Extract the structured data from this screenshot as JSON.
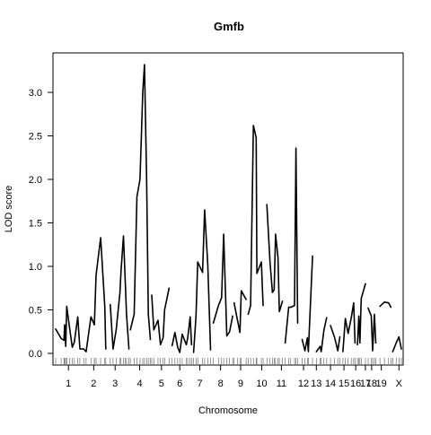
{
  "chart_data": {
    "type": "line",
    "title": "Gmfb",
    "xlabel": "Chromosome",
    "ylabel": "LOD score",
    "ylim": [
      -0.12,
      3.45
    ],
    "yticks": [
      0.0,
      0.5,
      1.0,
      1.5,
      2.0,
      2.5,
      3.0
    ],
    "ytick_labels": [
      "0.0",
      "0.5",
      "1.0",
      "1.5",
      "2.0",
      "2.5",
      "3.0"
    ],
    "xlim": [
      0,
      100
    ],
    "grid": false,
    "legend": "none",
    "line_color": "#000000",
    "chromosomes": [
      {
        "label": "1",
        "start": 0,
        "end": 11.2,
        "label_pos": 3.7,
        "points": [
          [
            0,
            0.28
          ],
          [
            1.6,
            0.17
          ],
          [
            2.4,
            0.15
          ],
          [
            2.6,
            0.33
          ],
          [
            2.9,
            0.08
          ],
          [
            3.2,
            0.54
          ],
          [
            4.0,
            0.3
          ],
          [
            4.8,
            0.07
          ],
          [
            5.4,
            0.13
          ],
          [
            6.4,
            0.42
          ],
          [
            7.0,
            0.05
          ],
          [
            8.1,
            0.05
          ],
          [
            8.8,
            0.02
          ],
          [
            10.2,
            0.42
          ],
          [
            11.2,
            0.33
          ]
        ]
      },
      {
        "label": "2",
        "start": 11.2,
        "end": 18.0,
        "label_pos": 11.0,
        "points": [
          [
            11.2,
            0.33
          ],
          [
            11.7,
            0.9
          ],
          [
            13.0,
            1.33
          ],
          [
            14.2,
            0.54
          ],
          [
            14.5,
            0.05
          ]
        ]
      },
      {
        "label": "3",
        "start": 18.0,
        "end": 25.0,
        "label_pos": 17.2,
        "points": [
          [
            15.8,
            0.56
          ],
          [
            16.6,
            0.05
          ],
          [
            17.5,
            0.27
          ],
          [
            18.6,
            0.7
          ],
          [
            18.9,
            0.95
          ],
          [
            19.6,
            1.35
          ],
          [
            20.1,
            0.85
          ],
          [
            20.5,
            0.45
          ],
          [
            21.2,
            0.05
          ]
        ]
      },
      {
        "label": "4",
        "start": 25.0,
        "end": 30.5,
        "label_pos": 24.3,
        "points": [
          [
            21.6,
            0.27
          ],
          [
            22.7,
            0.45
          ],
          [
            23.5,
            1.8
          ],
          [
            24.4,
            2.0
          ],
          [
            25.2,
            3.0
          ],
          [
            25.7,
            3.32
          ],
          [
            26.3,
            2.0
          ],
          [
            26.8,
            0.45
          ],
          [
            27.4,
            0.16
          ]
        ]
      },
      {
        "label": "5",
        "start": 30.5,
        "end": 34.5,
        "label_pos": 30.6,
        "points": [
          [
            27.8,
            0.67
          ],
          [
            28.4,
            0.27
          ],
          [
            29.6,
            0.38
          ],
          [
            30.3,
            0.1
          ],
          [
            31.1,
            0.18
          ],
          [
            31.5,
            0.5
          ],
          [
            32.8,
            0.75
          ]
        ]
      },
      {
        "label": "6",
        "start": 34.5,
        "end": 40.0,
        "label_pos": 35.9,
        "points": [
          [
            33.7,
            0.09
          ],
          [
            34.5,
            0.24
          ],
          [
            35.3,
            0.07
          ],
          [
            35.9,
            0.01
          ],
          [
            36.6,
            0.22
          ],
          [
            37.8,
            0.1
          ],
          [
            38.2,
            0.18
          ],
          [
            38.9,
            0.42
          ],
          [
            39.3,
            0.1
          ]
        ]
      },
      {
        "label": "7",
        "start": 40.0,
        "end": 46.0,
        "label_pos": 41.7,
        "points": [
          [
            39.9,
            0.01
          ],
          [
            40.6,
            0.43
          ],
          [
            41.1,
            1.05
          ],
          [
            42.5,
            0.93
          ],
          [
            43.1,
            1.65
          ],
          [
            44.0,
            1.02
          ],
          [
            44.8,
            0.04
          ]
        ]
      },
      {
        "label": "8",
        "start": 46.0,
        "end": 52.0,
        "label_pos": 47.7,
        "points": [
          [
            45.6,
            0.35
          ],
          [
            47.1,
            0.55
          ],
          [
            48.0,
            0.64
          ],
          [
            48.6,
            1.37
          ],
          [
            49.5,
            0.2
          ],
          [
            50.3,
            0.25
          ],
          [
            51.2,
            0.43
          ]
        ]
      },
      {
        "label": "9",
        "start": 52.0,
        "end": 56.0,
        "label_pos": 53.5,
        "points": [
          [
            51.6,
            0.58
          ],
          [
            52.6,
            0.38
          ],
          [
            53.3,
            0.24
          ],
          [
            53.7,
            0.72
          ],
          [
            55.1,
            0.62
          ]
        ]
      },
      {
        "label": "10",
        "start": 56.0,
        "end": 61.0,
        "label_pos": 59.6,
        "points": [
          [
            55.7,
            0.45
          ],
          [
            56.4,
            0.55
          ],
          [
            57.2,
            2.62
          ],
          [
            58.0,
            2.48
          ],
          [
            58.2,
            0.92
          ],
          [
            59.5,
            1.05
          ],
          [
            60.0,
            0.55
          ]
        ]
      },
      {
        "label": "11",
        "start": 61.0,
        "end": 66.0,
        "label_pos": 65.3,
        "points": [
          [
            61.1,
            1.71
          ],
          [
            62.0,
            1.05
          ],
          [
            62.7,
            0.7
          ],
          [
            63.2,
            0.73
          ],
          [
            63.6,
            1.37
          ],
          [
            64.3,
            1.1
          ],
          [
            64.7,
            0.48
          ],
          [
            65.6,
            0.6
          ]
        ]
      },
      {
        "label": "12",
        "start": 66.0,
        "end": 70.5,
        "label_pos": 71.7,
        "points": [
          [
            66.4,
            0.12
          ],
          [
            67.4,
            0.53
          ],
          [
            68.0,
            0.53
          ],
          [
            69.1,
            0.55
          ],
          [
            69.5,
            2.36
          ],
          [
            70.0,
            0.35
          ]
        ]
      },
      {
        "label": "13",
        "start": 70.5,
        "end": 74.5,
        "label_pos": 75.4,
        "points": [
          [
            71.3,
            0.16
          ],
          [
            72.1,
            0.03
          ],
          [
            72.8,
            0.18
          ],
          [
            73.1,
            0.02
          ],
          [
            74.3,
            1.12
          ]
        ]
      },
      {
        "label": "14",
        "start": 74.5,
        "end": 78.5,
        "label_pos": 79.5,
        "points": [
          [
            75.4,
            0.02
          ],
          [
            76.5,
            0.08
          ],
          [
            76.8,
            0.02
          ],
          [
            77.6,
            0.27
          ],
          [
            78.4,
            0.41
          ]
        ]
      },
      {
        "label": "15",
        "start": 78.5,
        "end": 82.5,
        "label_pos": 83.4,
        "points": [
          [
            79.5,
            0.32
          ],
          [
            80.7,
            0.18
          ],
          [
            81.6,
            0.03
          ],
          [
            82.2,
            0.19
          ]
        ]
      },
      {
        "label": "16",
        "start": 82.5,
        "end": 86.0,
        "label_pos": 86.8,
        "points": [
          [
            83.1,
            0.02
          ],
          [
            83.8,
            0.4
          ],
          [
            84.6,
            0.23
          ],
          [
            85.5,
            0.41
          ],
          [
            86.2,
            0.58
          ],
          [
            86.6,
            0.12
          ]
        ]
      },
      {
        "label": "17",
        "start": 86.0,
        "end": 89.0,
        "label_pos": 89.6,
        "points": [
          [
            87.3,
            0.1
          ],
          [
            87.7,
            0.43
          ],
          [
            88.0,
            0.12
          ],
          [
            88.4,
            0.63
          ],
          [
            89.6,
            0.8
          ]
        ]
      },
      {
        "label": "18",
        "start": 89.0,
        "end": 91.5,
        "label_pos": 91.4,
        "points": [
          [
            90.4,
            0.52
          ],
          [
            91.3,
            0.43
          ],
          [
            91.7,
            0.03
          ],
          [
            92.2,
            0.45
          ],
          [
            92.6,
            0.12
          ]
        ]
      },
      {
        "label": "19",
        "start": 91.5,
        "end": 96.0,
        "label_pos": 94.2,
        "points": [
          [
            93.8,
            0.54
          ],
          [
            95.1,
            0.59
          ],
          [
            96.3,
            0.58
          ],
          [
            97.0,
            0.53
          ]
        ]
      },
      {
        "label": "X",
        "start": 96.0,
        "end": 100.0,
        "label_pos": 99.3,
        "points": [
          [
            97.5,
            0.02
          ],
          [
            98.5,
            0.12
          ],
          [
            99.3,
            0.19
          ],
          [
            100,
            0.05
          ]
        ]
      }
    ]
  }
}
